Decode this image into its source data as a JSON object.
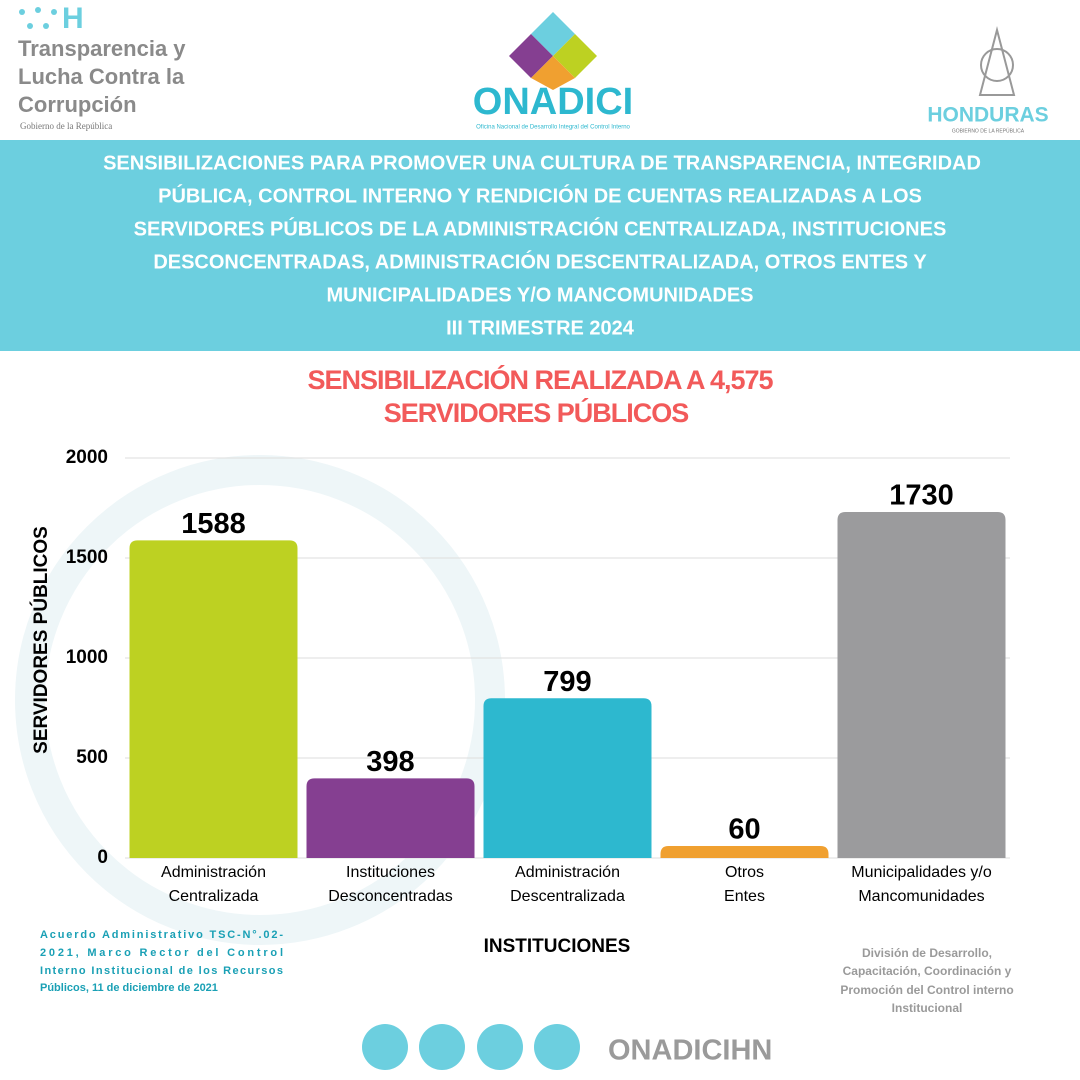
{
  "header": {
    "left_logo": [
      "Transparencia y",
      "Lucha Contra la",
      "Corrupción"
    ],
    "left_logo_sub": "Gobierno de la República",
    "center_logo": "ONADICI",
    "center_logo_sub": "Oficina Nacional de Desarrollo Integral del Control Interno",
    "right_logo": "HONDURAS",
    "right_logo_sub": "GOBIERNO DE LA REPÚBLICA"
  },
  "banner": {
    "lines": [
      "SENSIBILIZACIONES PARA PROMOVER UNA CULTURA DE TRANSPARENCIA, INTEGRIDAD",
      "PÚBLICA, CONTROL INTERNO Y RENDICIÓN DE CUENTAS REALIZADAS A LOS",
      "SERVIDORES PÚBLICOS DE LA ADMINISTRACIÓN CENTRALIZADA, INSTITUCIONES",
      "DESCONCENTRADAS, ADMINISTRACIÓN DESCENTRALIZADA, OTROS ENTES Y",
      "MUNICIPALIDADES Y/O MANCOMUNIDADES",
      "III TRIMESTRE 2024"
    ]
  },
  "chart_data": {
    "type": "bar",
    "title": [
      "SENSIBILIZACIÓN REALIZADA A 4,575",
      "SERVIDORES PÚBLICOS"
    ],
    "x_label": "INSTITUCIONES",
    "y_label": "SERVIDORES PÚBLICOS",
    "categories": [
      [
        "Administración",
        "Centralizada"
      ],
      [
        "Instituciones",
        "Desconcentradas"
      ],
      [
        "Administración",
        "Descentralizada"
      ],
      [
        "Otros",
        "Entes"
      ],
      [
        "Municipalidades y/o",
        "Mancomunidades"
      ]
    ],
    "values": [
      1588,
      398,
      799,
      60,
      1730
    ],
    "colors": [
      "#bdd122",
      "#853f91",
      "#2db8cf",
      "#f0a030",
      "#9b9b9d"
    ],
    "ylim": [
      0,
      2000
    ],
    "yticks": [
      0,
      500,
      1000,
      1500,
      2000
    ],
    "grid": true
  },
  "footer": {
    "left": [
      "Acuerdo Administrativo TSC-N°.02-",
      "2021, Marco Rector del Control",
      "Interno Institucional de los Recursos",
      "Públicos, 11 de diciembre de 2021"
    ],
    "right": [
      "División de Desarrollo,",
      "Capacitación, Coordinación y",
      "Promoción del Control interno",
      "Institucional"
    ],
    "handle": "ONADICIHN"
  }
}
